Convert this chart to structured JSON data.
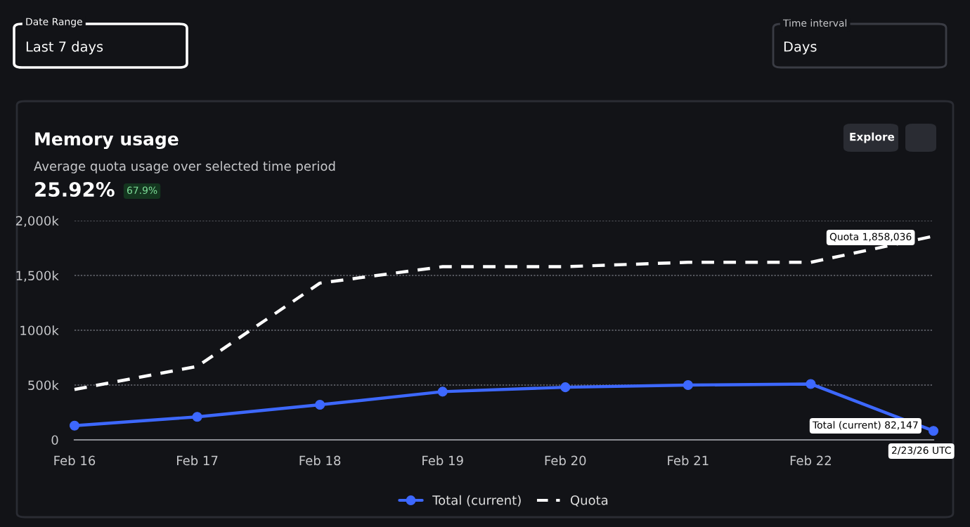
{
  "chart_data": {
    "type": "line",
    "title": "Memory usage",
    "subtitle": "Average quota usage over selected time period",
    "categories": [
      "Feb 16",
      "Feb 17",
      "Feb 18",
      "Feb 19",
      "Feb 20",
      "Feb 21",
      "Feb 22",
      null
    ],
    "series": [
      {
        "name": "Total (current)",
        "color": "#3d68ff",
        "marker": "circle",
        "line_style": "solid",
        "values": [
          130,
          210,
          320,
          440,
          480,
          500,
          510,
          82.147
        ]
      },
      {
        "name": "Quota",
        "color": "#ffffff",
        "marker": "none",
        "line_style": "dashed",
        "values": [
          460,
          670,
          1430,
          1580,
          1580,
          1620,
          1620,
          1858.036
        ]
      }
    ],
    "ylim": [
      0,
      2000
    ],
    "yticks": [
      0,
      {
        "value": 500,
        "label": "500k"
      },
      {
        "value": 1000,
        "label": "1000k"
      },
      {
        "value": 1500,
        "label": "1,500k"
      },
      {
        "value": 2000,
        "label": "2,000k"
      }
    ],
    "grid": "y",
    "legend": "bottom",
    "annotations": [
      "Date Range",
      "Last 7 days",
      "Time interval",
      "Days",
      "Explore",
      "25.92%",
      "67.9%",
      "Quota 1,858,036",
      "Total (current) 82,147",
      "2/23/26 UTC"
    ]
  }
}
